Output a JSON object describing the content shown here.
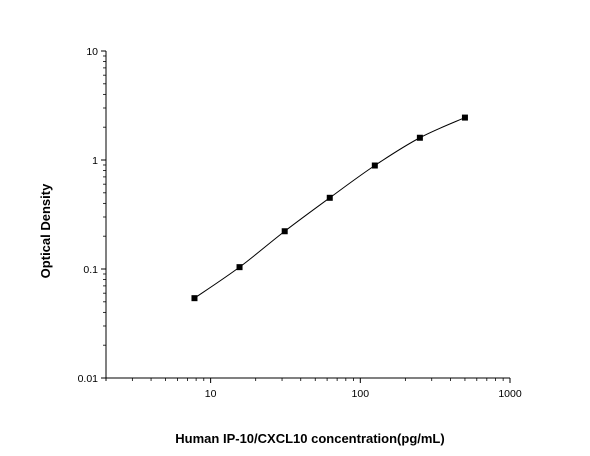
{
  "chart_data": {
    "type": "scatter",
    "title": "",
    "xlabel": "Human IP-10/CXCL10 concentration(pg/mL)",
    "ylabel": "Optical Density",
    "xscale": "log",
    "yscale": "log",
    "xlim": [
      2,
      1000
    ],
    "ylim": [
      0.01,
      10
    ],
    "xticks": [
      10,
      100,
      1000
    ],
    "xtick_labels": [
      "10",
      "100",
      "1000"
    ],
    "yticks": [
      0.01,
      0.1,
      1,
      10
    ],
    "ytick_labels": [
      "0.01",
      "0.1",
      "1",
      "10"
    ],
    "grid": false,
    "series": [
      {
        "marker": "square",
        "color": "#000000",
        "x": [
          7.8,
          15.6,
          31.25,
          62.5,
          125,
          250,
          500
        ],
        "y": [
          0.054,
          0.104,
          0.222,
          0.45,
          0.89,
          1.6,
          2.45
        ],
        "fit_line": true
      }
    ]
  }
}
